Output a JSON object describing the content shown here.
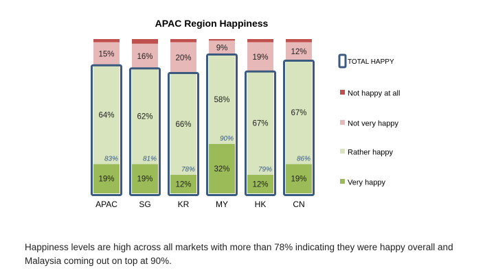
{
  "chart_data": {
    "type": "bar",
    "stacked": true,
    "title": "APAC Region Happiness",
    "categories": [
      "APAC",
      "SG",
      "KR",
      "MY",
      "HK",
      "CN"
    ],
    "ylim": [
      0,
      100
    ],
    "series": [
      {
        "name": "Very happy",
        "color": "#9bbb59",
        "values": [
          19,
          19,
          12,
          32,
          12,
          19
        ]
      },
      {
        "name": "Rather happy",
        "color": "#d7e4bd",
        "values": [
          64,
          62,
          66,
          58,
          67,
          67
        ]
      },
      {
        "name": "Not very happy",
        "color": "#e6b9b8",
        "values": [
          15,
          16,
          20,
          9,
          19,
          12
        ]
      },
      {
        "name": "Not happy at all",
        "color": "#c0504d",
        "values": [
          2,
          3,
          2,
          1,
          2,
          2
        ]
      }
    ],
    "total_happy": {
      "name": "TOTAL HAPPY",
      "color": "#3b5a7f",
      "values": [
        83,
        81,
        78,
        90,
        79,
        86
      ]
    },
    "legend_position": "right",
    "grid": false
  },
  "caption": "Happiness levels are high across all markets with more than 78% indicating they were happy overall and Malaysia coming out on top at 90%."
}
